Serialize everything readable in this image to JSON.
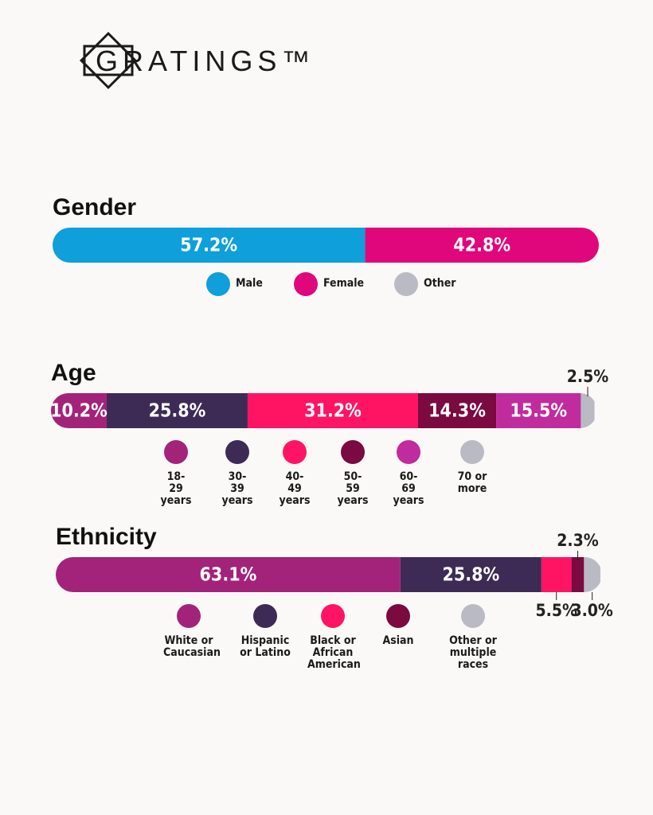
{
  "logo": "GRATINGS™",
  "chart_data": [
    {
      "type": "stacked-bar",
      "title": "Gender",
      "xlim": [
        0,
        100
      ],
      "series": [
        {
          "name": "Male",
          "color": "#0f9fdb",
          "values": [
            57.2
          ],
          "value_labels": [
            "57.2%"
          ]
        },
        {
          "name": "Female",
          "color": "#e0077d",
          "values": [
            42.8
          ],
          "value_labels": [
            "42.8%"
          ]
        },
        {
          "name": "Other",
          "color": "#b9bac4",
          "values": [
            0
          ]
        }
      ]
    },
    {
      "type": "stacked-bar",
      "title": "Age",
      "xlim": [
        0,
        100
      ],
      "series": [
        {
          "name": "18-29 years",
          "color": "#a3237a",
          "values": [
            10.2
          ],
          "value_labels": [
            "10.2%"
          ]
        },
        {
          "name": "30-39 years",
          "color": "#3d2b56",
          "values": [
            25.8
          ],
          "value_labels": [
            "25.8%"
          ]
        },
        {
          "name": "40-49 years",
          "color": "#ff1464",
          "values": [
            31.2
          ],
          "value_labels": [
            "31.2%"
          ]
        },
        {
          "name": "50-59 years",
          "color": "#7a0a3f",
          "values": [
            14.3
          ],
          "value_labels": [
            "14.3%"
          ]
        },
        {
          "name": "60-69 years",
          "color": "#c02c9e",
          "values": [
            15.5
          ],
          "value_labels": [
            "15.5%"
          ]
        },
        {
          "name": "70 or more",
          "color": "#b9bac4",
          "values": [
            2.5
          ],
          "value_labels": [
            "2.5%"
          ],
          "label_position": "above"
        }
      ]
    },
    {
      "type": "stacked-bar",
      "title": "Ethnicity",
      "xlim": [
        0,
        100
      ],
      "series": [
        {
          "name": "White or Caucasian",
          "color": "#a3237a",
          "values": [
            63.1
          ],
          "value_labels": [
            "63.1%"
          ]
        },
        {
          "name": "Hispanic or Latino",
          "color": "#3d2b56",
          "values": [
            25.8
          ],
          "value_labels": [
            "25.8%"
          ]
        },
        {
          "name": "Black or African American",
          "color": "#ff1464",
          "values": [
            5.5
          ],
          "value_labels": [
            "5.5%"
          ],
          "label_position": "below"
        },
        {
          "name": "Asian",
          "color": "#7a0a3f",
          "values": [
            2.3
          ],
          "value_labels": [
            "2.3%"
          ],
          "label_position": "above"
        },
        {
          "name": "Other or multiple races",
          "color": "#b9bac4",
          "values": [
            3.0
          ],
          "value_labels": [
            "3.0%"
          ],
          "label_position": "below"
        }
      ]
    }
  ]
}
